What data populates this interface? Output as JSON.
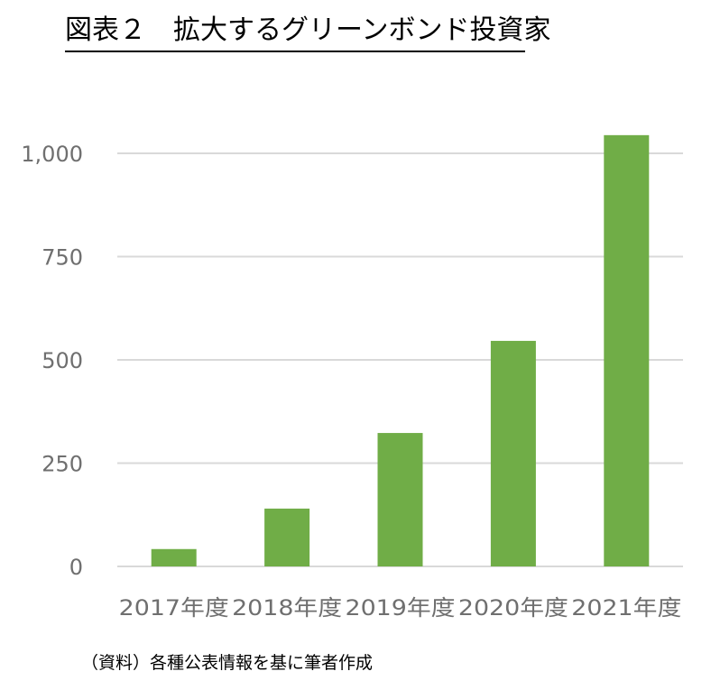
{
  "title": "図表２　拡大するグリーンボンド投資家",
  "source_note": "（資料）各種公表情報を基に筆者作成",
  "chart_data": {
    "type": "bar",
    "title": "図表２　拡大するグリーンボンド投資家",
    "categories": [
      "2017年度",
      "2018年度",
      "2019年度",
      "2020年度",
      "2021年度"
    ],
    "values": [
      42,
      140,
      323,
      546,
      1044
    ],
    "ylim": [
      0,
      1000
    ],
    "yticks": [
      0,
      250,
      500,
      750,
      1000
    ],
    "ytick_labels": [
      "0",
      "250",
      "500",
      "750",
      "1,000"
    ],
    "xlabel": "",
    "ylabel": "",
    "grid": true,
    "legend": "none",
    "bar_color": "#70ad47",
    "grid_color": "#d9d9d9"
  }
}
